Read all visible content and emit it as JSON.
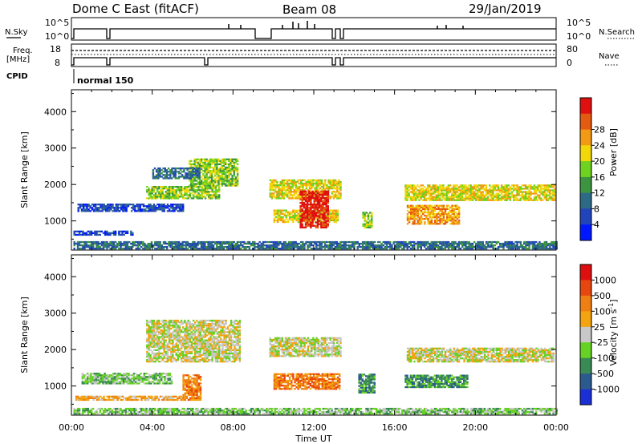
{
  "header": {
    "station": "Dome C East (fitACF)",
    "beam": "Beam 08",
    "date": "29/Jan/2019"
  },
  "top_panels": {
    "nsky_label": "N.Sky",
    "nsearch_label": "N.Search",
    "nsky_ticks": [
      "10^5",
      "10^0"
    ],
    "nsearch_ticks": [
      "10^5",
      "10^0"
    ],
    "freq_label": "Freq.",
    "freq_unit": "[MHz]",
    "freq_ticks": [
      "18",
      "8"
    ],
    "nave_label": "Nave",
    "nave_ticks": [
      "80",
      "0"
    ],
    "cpid_label": "CPID",
    "cpid_value": "normal 150"
  },
  "chart_data": [
    {
      "type": "heatmap",
      "quantity": "power",
      "ylabel": "Slant Range [km]",
      "ylim": [
        200,
        4600
      ],
      "yticks": [
        1000,
        2000,
        3000,
        4000
      ],
      "xlabel": "Time UT",
      "xlim": [
        0,
        24
      ],
      "xtick_labels": [
        "00:00",
        "04:00",
        "08:00",
        "12:00",
        "16:00",
        "20:00",
        "00:00"
      ],
      "colorbar": {
        "label": "Power [dB]",
        "ticks": [
          "4",
          "8",
          "12",
          "16",
          "20",
          "24",
          "28"
        ],
        "colors": [
          "#0018ff",
          "#2244bb",
          "#2c6a86",
          "#3d9440",
          "#6fd21e",
          "#f2d80a",
          "#f39a14",
          "#e35a10",
          "#e01010"
        ]
      },
      "bands": [
        {
          "t0": 0.1,
          "t1": 3.0,
          "r0": 600,
          "r1": 720,
          "level": 1
        },
        {
          "t0": 0.3,
          "t1": 5.5,
          "r0": 1250,
          "r1": 1450,
          "level": 1
        },
        {
          "t0": 3.7,
          "t1": 7.3,
          "r0": 1600,
          "r1": 1950,
          "level": 4
        },
        {
          "t0": 5.8,
          "t1": 8.2,
          "r0": 1950,
          "r1": 2700,
          "level": 4
        },
        {
          "t0": 4.0,
          "t1": 6.3,
          "r0": 2150,
          "r1": 2450,
          "level": 2
        },
        {
          "t0": 9.8,
          "t1": 13.3,
          "r0": 1600,
          "r1": 2100,
          "level": 5
        },
        {
          "t0": 10.0,
          "t1": 13.2,
          "r0": 950,
          "r1": 1300,
          "level": 5
        },
        {
          "t0": 11.3,
          "t1": 12.7,
          "r0": 800,
          "r1": 1800,
          "level": 8
        },
        {
          "t0": 14.4,
          "t1": 14.9,
          "r0": 800,
          "r1": 1250,
          "level": 4
        },
        {
          "t0": 16.5,
          "t1": 23.9,
          "r0": 1550,
          "r1": 2000,
          "level": 5
        },
        {
          "t0": 16.6,
          "t1": 19.2,
          "r0": 900,
          "r1": 1400,
          "level": 6
        },
        {
          "t0": 0.1,
          "t1": 24.0,
          "r0": 220,
          "r1": 420,
          "level": 2
        }
      ]
    },
    {
      "type": "heatmap",
      "quantity": "velocity",
      "ylabel": "Slant Range [km]",
      "ylim": [
        200,
        4600
      ],
      "yticks": [
        1000,
        2000,
        3000,
        4000
      ],
      "xlabel": "Time UT",
      "xlim": [
        0,
        24
      ],
      "xtick_labels": [
        "00:00",
        "04:00",
        "08:00",
        "12:00",
        "16:00",
        "20:00",
        "00:00"
      ],
      "colorbar": {
        "label": "Velocity [m s",
        "label_superscript": "-1",
        "label_suffix": "]",
        "ticks": [
          "1000",
          "500",
          "100",
          "25",
          "-25",
          "-100",
          "-500",
          "-1000"
        ],
        "colors": [
          "#1a2fd6",
          "#2b5a8e",
          "#3a8a55",
          "#66d223",
          "#c8c8c8",
          "#f3a40e",
          "#ef7f12",
          "#e8460f",
          "#dd0f0f"
        ]
      },
      "bands": [
        {
          "t0": 3.7,
          "t1": 8.3,
          "r0": 1650,
          "r1": 2800,
          "level": 4
        },
        {
          "t0": 9.8,
          "t1": 13.3,
          "r0": 1800,
          "r1": 2300,
          "level": 4
        },
        {
          "t0": 16.6,
          "t1": 23.9,
          "r0": 1650,
          "r1": 2050,
          "level": 4
        },
        {
          "t0": 10.0,
          "t1": 13.3,
          "r0": 900,
          "r1": 1350,
          "level": 6
        },
        {
          "t0": 5.5,
          "t1": 6.4,
          "r0": 600,
          "r1": 1300,
          "level": 6
        },
        {
          "t0": 14.2,
          "t1": 15.0,
          "r0": 800,
          "r1": 1300,
          "level": 2
        },
        {
          "t0": 16.5,
          "t1": 19.6,
          "r0": 950,
          "r1": 1300,
          "level": 2
        },
        {
          "t0": 0.5,
          "t1": 5.0,
          "r0": 1050,
          "r1": 1350,
          "level": 3
        },
        {
          "t0": 0.2,
          "t1": 5.5,
          "r0": 600,
          "r1": 700,
          "level": 5
        },
        {
          "t0": 0.1,
          "t1": 24.0,
          "r0": 220,
          "r1": 380,
          "level": 3
        }
      ]
    }
  ]
}
